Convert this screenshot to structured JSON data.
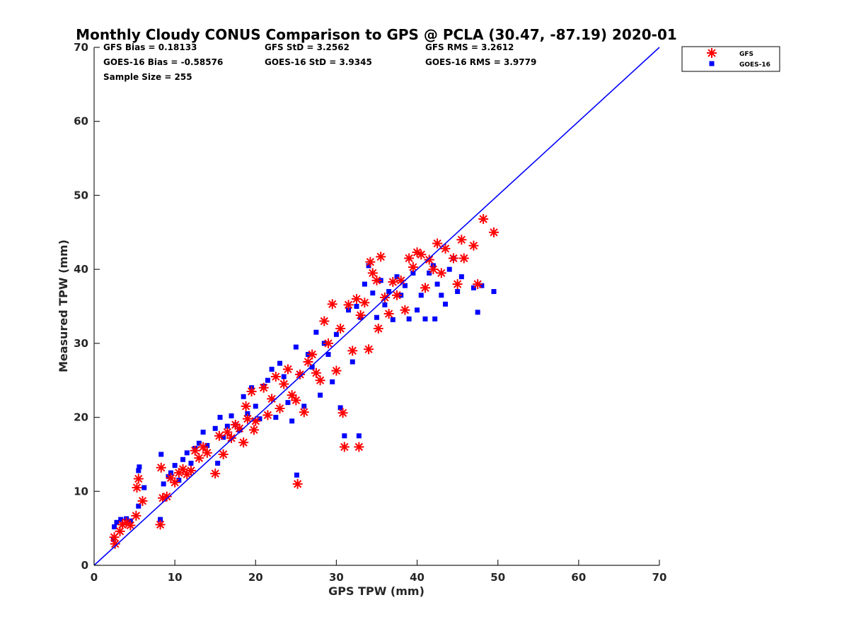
{
  "chart_data": {
    "type": "scatter",
    "title": "Monthly Cloudy CONUS Comparison to GPS @ PCLA (30.47, -87.19) 2020-01",
    "xlabel": "GPS TPW (mm)",
    "ylabel": "Measured TPW (mm)",
    "xlim": [
      0,
      70
    ],
    "ylim": [
      0,
      70
    ],
    "xticks": [
      "0",
      "10",
      "20",
      "30",
      "40",
      "50",
      "60",
      "70"
    ],
    "yticks": [
      "0",
      "10",
      "20",
      "30",
      "40",
      "50",
      "60",
      "70"
    ],
    "legend_position": "top-right (outside)",
    "stats": {
      "gfs_bias": "GFS Bias = 0.18133",
      "goes_bias": "GOES-16 Bias = -0.58576",
      "sample_size": "Sample Size = 255",
      "gfs_std": "GFS StD = 3.2562",
      "goes_std": "GOES-16 StD = 3.9345",
      "gfs_rms": "GFS RMS = 3.2612",
      "goes_rms": "GOES-16 RMS = 3.9779"
    },
    "reference_line": {
      "name": "1:1",
      "x": [
        0,
        70
      ],
      "y": [
        0,
        70
      ],
      "color": "#0000ff"
    },
    "series": [
      {
        "name": "GFS",
        "marker": "asterisk",
        "color": "#ff0000",
        "points": [
          [
            2.5,
            3.8
          ],
          [
            2.6,
            2.9
          ],
          [
            3.2,
            4.6
          ],
          [
            3.5,
            5.5
          ],
          [
            4.0,
            5.8
          ],
          [
            4.5,
            5.4
          ],
          [
            5.2,
            6.7
          ],
          [
            5.3,
            10.5
          ],
          [
            5.5,
            11.7
          ],
          [
            6.0,
            8.7
          ],
          [
            8.2,
            5.5
          ],
          [
            8.3,
            13.2
          ],
          [
            8.5,
            9.1
          ],
          [
            9.0,
            9.3
          ],
          [
            9.5,
            11.8
          ],
          [
            10.0,
            11.2
          ],
          [
            10.5,
            12.5
          ],
          [
            11.0,
            13.0
          ],
          [
            11.5,
            12.3
          ],
          [
            12.0,
            12.8
          ],
          [
            12.5,
            15.5
          ],
          [
            13.0,
            14.5
          ],
          [
            13.5,
            16.0
          ],
          [
            14.0,
            15.2
          ],
          [
            15.0,
            12.4
          ],
          [
            15.5,
            17.5
          ],
          [
            16.0,
            15.0
          ],
          [
            16.5,
            18.0
          ],
          [
            17.0,
            17.2
          ],
          [
            17.5,
            19.0
          ],
          [
            18.0,
            18.5
          ],
          [
            18.5,
            16.6
          ],
          [
            18.8,
            21.5
          ],
          [
            19.0,
            19.8
          ],
          [
            19.5,
            23.5
          ],
          [
            19.8,
            18.3
          ],
          [
            20.0,
            19.5
          ],
          [
            21.0,
            24.0
          ],
          [
            21.5,
            20.3
          ],
          [
            22.0,
            22.5
          ],
          [
            22.5,
            25.5
          ],
          [
            23.0,
            21.2
          ],
          [
            23.5,
            24.5
          ],
          [
            24.0,
            26.5
          ],
          [
            24.5,
            23.0
          ],
          [
            25.0,
            22.3
          ],
          [
            25.2,
            11.0
          ],
          [
            25.5,
            25.8
          ],
          [
            26.0,
            20.7
          ],
          [
            26.5,
            27.5
          ],
          [
            27.0,
            28.5
          ],
          [
            27.5,
            26.0
          ],
          [
            28.0,
            25.0
          ],
          [
            28.5,
            33.0
          ],
          [
            29.0,
            30.0
          ],
          [
            29.5,
            35.3
          ],
          [
            30.0,
            26.3
          ],
          [
            30.5,
            32.0
          ],
          [
            30.8,
            20.6
          ],
          [
            31.0,
            16.0
          ],
          [
            31.5,
            35.2
          ],
          [
            32.0,
            29.0
          ],
          [
            32.5,
            36.0
          ],
          [
            32.8,
            16.0
          ],
          [
            33.0,
            33.8
          ],
          [
            33.5,
            35.5
          ],
          [
            34.0,
            29.2
          ],
          [
            34.2,
            41.0
          ],
          [
            34.5,
            39.5
          ],
          [
            35.0,
            38.5
          ],
          [
            35.5,
            41.7
          ],
          [
            35.2,
            32.0
          ],
          [
            36.0,
            36.2
          ],
          [
            36.5,
            34.0
          ],
          [
            37.0,
            38.3
          ],
          [
            37.5,
            36.5
          ],
          [
            38.0,
            38.5
          ],
          [
            38.5,
            34.5
          ],
          [
            39.0,
            41.5
          ],
          [
            39.5,
            40.3
          ],
          [
            40.0,
            42.3
          ],
          [
            40.5,
            42.0
          ],
          [
            41.0,
            37.5
          ],
          [
            41.5,
            41.3
          ],
          [
            42.0,
            40.0
          ],
          [
            42.5,
            43.5
          ],
          [
            43.0,
            39.5
          ],
          [
            43.5,
            42.8
          ],
          [
            44.5,
            41.5
          ],
          [
            45.0,
            38.0
          ],
          [
            45.5,
            44.0
          ],
          [
            45.8,
            41.5
          ],
          [
            47.0,
            43.2
          ],
          [
            47.5,
            38.0
          ],
          [
            48.2,
            46.8
          ],
          [
            49.5,
            45.0
          ]
        ]
      },
      {
        "name": "GOES-16",
        "marker": "square",
        "color": "#0000ff",
        "points": [
          [
            2.4,
            3.5
          ],
          [
            2.5,
            5.2
          ],
          [
            2.8,
            5.8
          ],
          [
            3.3,
            6.2
          ],
          [
            4.0,
            6.3
          ],
          [
            4.5,
            6.0
          ],
          [
            5.5,
            8.0
          ],
          [
            5.5,
            12.8
          ],
          [
            5.6,
            13.3
          ],
          [
            6.2,
            10.5
          ],
          [
            8.2,
            6.2
          ],
          [
            8.3,
            15.0
          ],
          [
            8.6,
            11.0
          ],
          [
            9.2,
            12.0
          ],
          [
            9.5,
            12.5
          ],
          [
            10.0,
            13.5
          ],
          [
            10.5,
            11.5
          ],
          [
            11.0,
            14.3
          ],
          [
            11.5,
            15.2
          ],
          [
            12.0,
            13.8
          ],
          [
            12.5,
            15.8
          ],
          [
            13.0,
            16.5
          ],
          [
            13.5,
            18.0
          ],
          [
            14.0,
            16.2
          ],
          [
            15.0,
            18.5
          ],
          [
            15.3,
            13.8
          ],
          [
            15.6,
            20.0
          ],
          [
            16.0,
            17.3
          ],
          [
            16.5,
            18.8
          ],
          [
            17.0,
            20.2
          ],
          [
            17.5,
            19.0
          ],
          [
            18.0,
            18.3
          ],
          [
            18.5,
            22.8
          ],
          [
            19.0,
            20.5
          ],
          [
            19.5,
            24.0
          ],
          [
            20.0,
            21.5
          ],
          [
            20.5,
            19.8
          ],
          [
            21.0,
            24.2
          ],
          [
            21.5,
            25.0
          ],
          [
            22.0,
            26.5
          ],
          [
            22.5,
            20.0
          ],
          [
            23.0,
            27.3
          ],
          [
            23.5,
            25.5
          ],
          [
            24.0,
            22.0
          ],
          [
            24.5,
            19.5
          ],
          [
            25.0,
            29.5
          ],
          [
            25.1,
            12.2
          ],
          [
            25.5,
            25.8
          ],
          [
            26.0,
            21.5
          ],
          [
            26.5,
            28.5
          ],
          [
            27.0,
            26.8
          ],
          [
            27.5,
            31.5
          ],
          [
            28.0,
            23.0
          ],
          [
            28.5,
            30.0
          ],
          [
            29.0,
            28.5
          ],
          [
            29.5,
            24.8
          ],
          [
            30.0,
            31.2
          ],
          [
            30.5,
            21.3
          ],
          [
            31.0,
            17.5
          ],
          [
            31.5,
            34.5
          ],
          [
            32.0,
            27.5
          ],
          [
            32.5,
            35.0
          ],
          [
            32.8,
            17.5
          ],
          [
            33.0,
            33.5
          ],
          [
            33.5,
            38.0
          ],
          [
            34.0,
            40.5
          ],
          [
            34.5,
            36.8
          ],
          [
            35.0,
            33.5
          ],
          [
            35.5,
            38.5
          ],
          [
            36.0,
            35.2
          ],
          [
            36.5,
            37.0
          ],
          [
            37.0,
            33.2
          ],
          [
            37.5,
            39.0
          ],
          [
            38.0,
            36.5
          ],
          [
            38.5,
            37.8
          ],
          [
            39.0,
            33.3
          ],
          [
            39.5,
            39.5
          ],
          [
            40.0,
            34.5
          ],
          [
            40.5,
            36.5
          ],
          [
            41.0,
            33.3
          ],
          [
            41.5,
            39.5
          ],
          [
            42.0,
            40.5
          ],
          [
            42.2,
            33.3
          ],
          [
            42.5,
            38.0
          ],
          [
            43.0,
            36.5
          ],
          [
            43.5,
            35.3
          ],
          [
            44.0,
            40.0
          ],
          [
            44.5,
            41.5
          ],
          [
            45.0,
            37.0
          ],
          [
            45.5,
            39.0
          ],
          [
            47.0,
            37.5
          ],
          [
            47.5,
            34.2
          ],
          [
            48.0,
            37.8
          ],
          [
            49.5,
            37.0
          ]
        ]
      }
    ]
  }
}
